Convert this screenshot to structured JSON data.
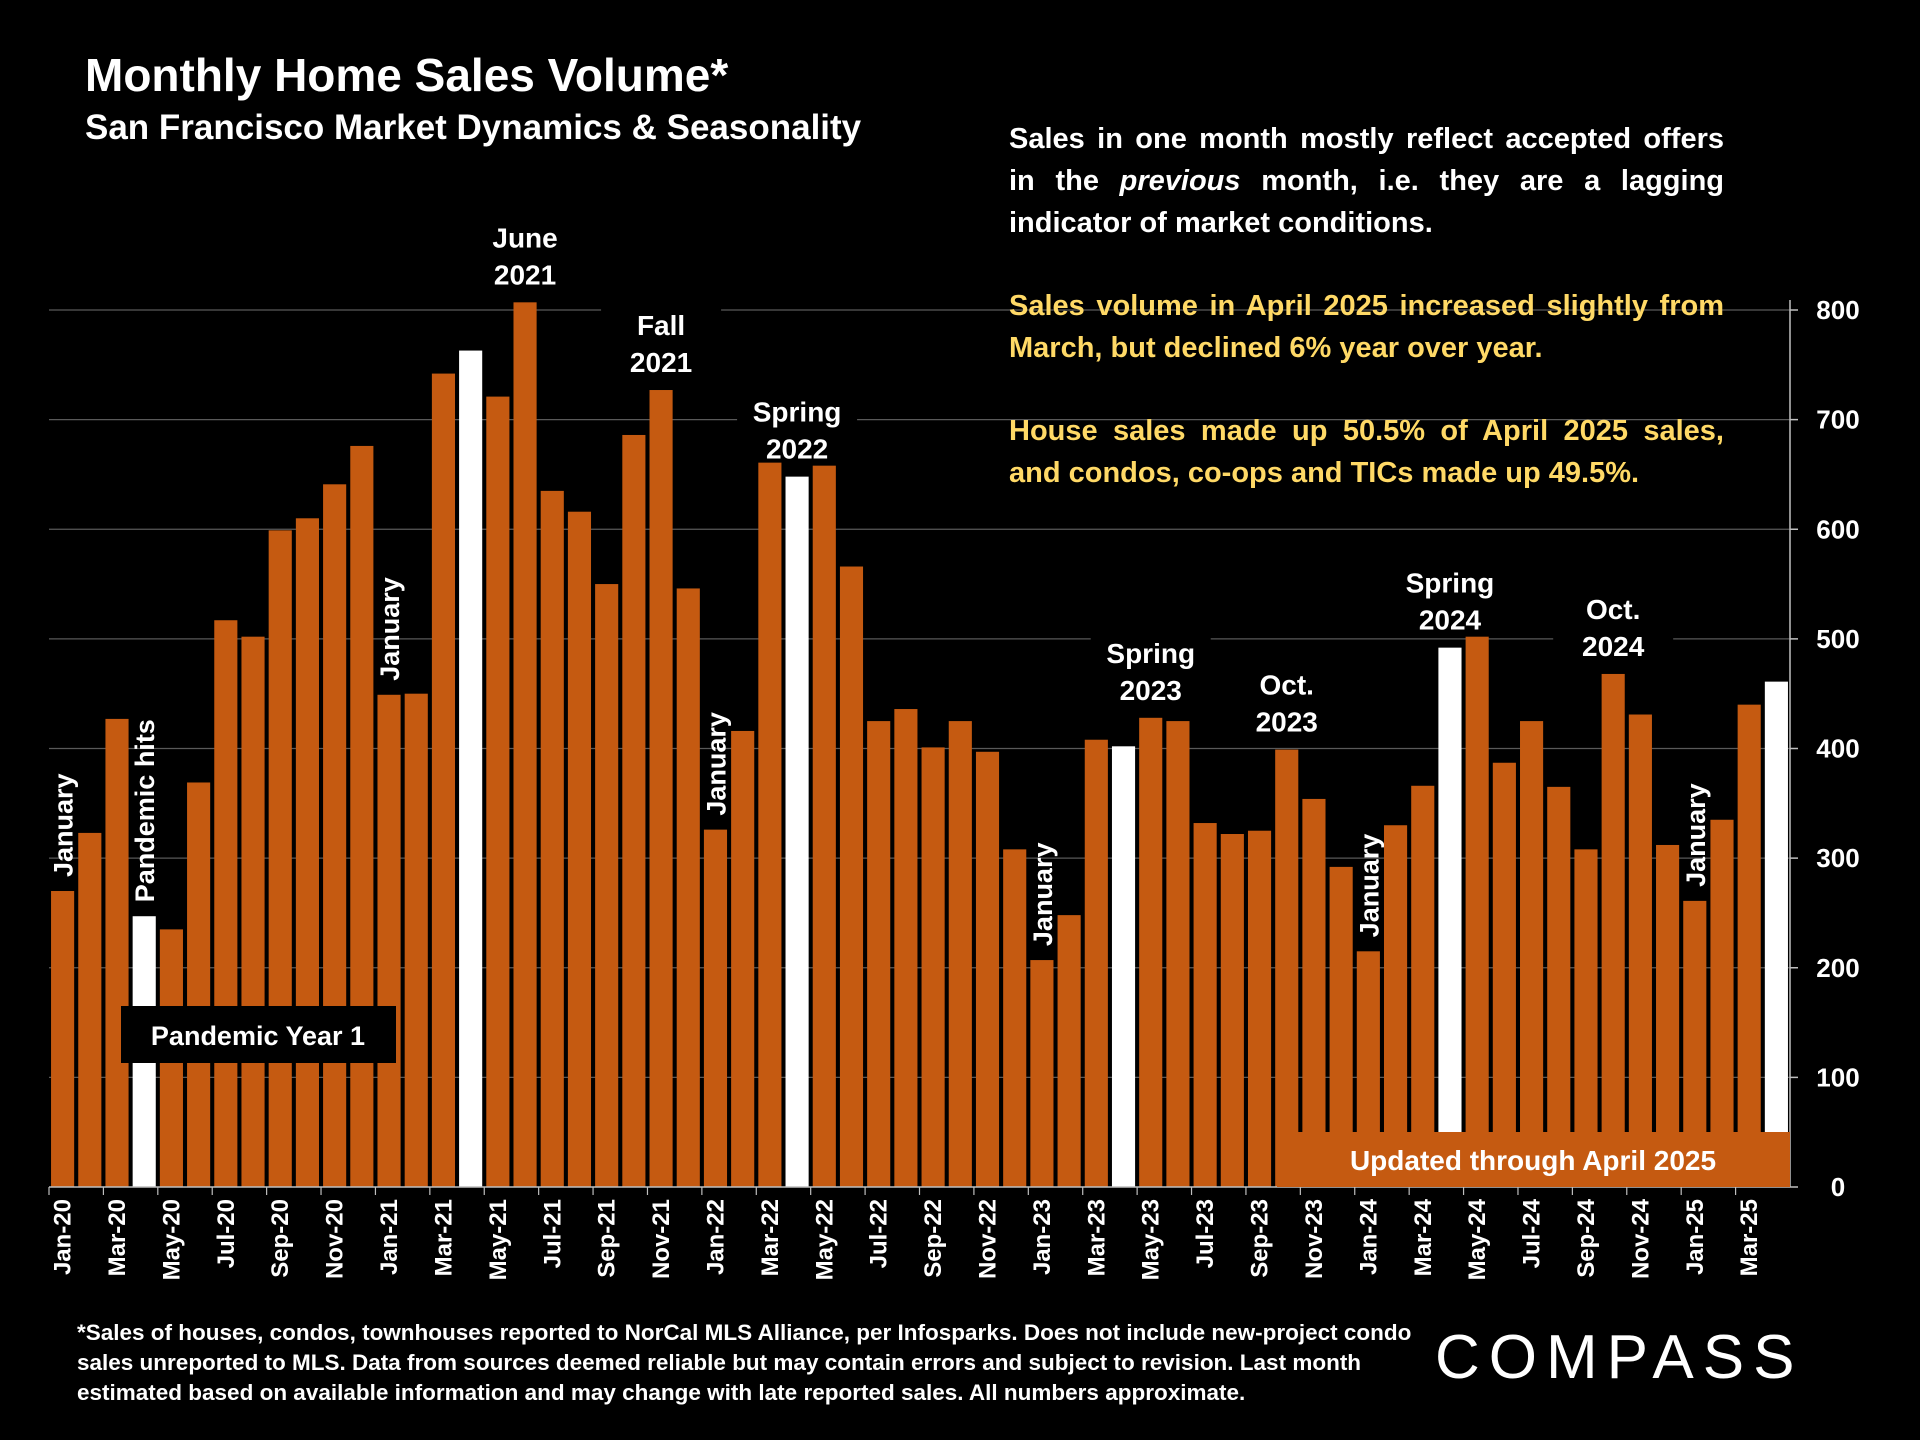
{
  "title": "Monthly Home Sales Volume*",
  "subtitle": "San Francisco Market Dynamics & Seasonality",
  "notes": {
    "p1_a": "Sales in one month mostly reflect accepted offers in the ",
    "p1_em": "previous",
    "p1_b": " month, i.e. they are a lagging indicator of market conditions.",
    "p2": "Sales volume in April 2025 increased slightly from March, but declined 6% year over year.",
    "p3": "House sales made up 50.5% of April 2025 sales, and condos, co-ops and TICs made up 49.5%."
  },
  "footer": "*Sales of houses, condos, townhouses reported to NorCal MLS Alliance, per Infosparks. Does not include new-project condo sales unreported to MLS. Data from sources deemed reliable but may contain errors and subject to revision. Last month estimated based on available information and may change with late reported sales. All numbers approximate.",
  "logo": "COMPASS",
  "colors": {
    "bar": "#c55a11",
    "highlight": "#ffffff",
    "grid": "#595959",
    "notes_highlight": "#ffd966"
  },
  "chart_data": {
    "type": "bar",
    "categories": [
      "Jan-20",
      "Feb-20",
      "Mar-20",
      "Apr-20",
      "May-20",
      "Jun-20",
      "Jul-20",
      "Aug-20",
      "Sep-20",
      "Oct-20",
      "Nov-20",
      "Dec-20",
      "Jan-21",
      "Feb-21",
      "Mar-21",
      "Apr-21",
      "May-21",
      "Jun-21",
      "Jul-21",
      "Aug-21",
      "Sep-21",
      "Oct-21",
      "Nov-21",
      "Dec-21",
      "Jan-22",
      "Feb-22",
      "Mar-22",
      "Apr-22",
      "May-22",
      "Jun-22",
      "Jul-22",
      "Aug-22",
      "Sep-22",
      "Oct-22",
      "Nov-22",
      "Dec-22",
      "Jan-23",
      "Feb-23",
      "Mar-23",
      "Apr-23",
      "May-23",
      "Jun-23",
      "Jul-23",
      "Aug-23",
      "Sep-23",
      "Oct-23",
      "Nov-23",
      "Dec-23",
      "Jan-24",
      "Feb-24",
      "Mar-24",
      "Apr-24",
      "May-24",
      "Jun-24",
      "Jul-24",
      "Aug-24",
      "Sep-24",
      "Oct-24",
      "Nov-24",
      "Dec-24",
      "Jan-25",
      "Feb-25",
      "Mar-25",
      "Apr-25"
    ],
    "values": [
      270,
      323,
      427,
      247,
      235,
      369,
      517,
      502,
      599,
      610,
      641,
      676,
      449,
      450,
      742,
      763,
      721,
      807,
      635,
      616,
      550,
      686,
      727,
      546,
      326,
      416,
      661,
      648,
      658,
      566,
      425,
      436,
      401,
      425,
      397,
      308,
      207,
      248,
      408,
      402,
      428,
      425,
      332,
      322,
      325,
      399,
      354,
      292,
      215,
      330,
      366,
      492,
      502,
      387,
      425,
      365,
      308,
      468,
      431,
      312,
      261,
      335,
      440,
      461
    ],
    "highlighted": [
      "Apr-20",
      "Apr-21",
      "Apr-22",
      "Apr-23",
      "Apr-24",
      "Apr-25"
    ],
    "x_tick_labels": [
      "Jan-20",
      "Mar-20",
      "May-20",
      "Jul-20",
      "Sep-20",
      "Nov-20",
      "Jan-21",
      "Mar-21",
      "May-21",
      "Jul-21",
      "Sep-21",
      "Nov-21",
      "Jan-22",
      "Mar-22",
      "May-22",
      "Jul-22",
      "Sep-22",
      "Nov-22",
      "Jan-23",
      "Mar-23",
      "May-23",
      "Jul-23",
      "Sep-23",
      "Nov-23",
      "Jan-24",
      "Mar-24",
      "May-24",
      "Jul-24",
      "Sep-24",
      "Nov-24",
      "Jan-25",
      "Mar-25"
    ],
    "y_ticks": [
      0,
      100,
      200,
      300,
      400,
      500,
      600,
      700,
      800
    ],
    "ylim": [
      0,
      800
    ],
    "y_axis_side": "right",
    "grid": true,
    "annotations": [
      {
        "month": "Jan-20",
        "lines": [
          "January"
        ],
        "rotated": true
      },
      {
        "month": "Apr-20",
        "lines": [
          "Pandemic hits"
        ],
        "rotated": true
      },
      {
        "month": "Jan-21",
        "lines": [
          "January"
        ],
        "rotated": true
      },
      {
        "month": "Jun-21",
        "lines": [
          "June",
          "2021"
        ],
        "rotated": false
      },
      {
        "month": "Nov-21",
        "lines": [
          "Fall",
          "2021"
        ],
        "rotated": false
      },
      {
        "month": "Jan-22",
        "lines": [
          "January"
        ],
        "rotated": true
      },
      {
        "month": "Apr-22",
        "lines": [
          "Spring",
          "2022"
        ],
        "rotated": false
      },
      {
        "month": "Jan-23",
        "lines": [
          "January"
        ],
        "rotated": true
      },
      {
        "month": "May-23",
        "lines": [
          "Spring",
          "2023"
        ],
        "rotated": false
      },
      {
        "month": "Oct-23",
        "lines": [
          "Oct.",
          "2023"
        ],
        "rotated": false
      },
      {
        "month": "Jan-24",
        "lines": [
          "January"
        ],
        "rotated": true
      },
      {
        "month": "Apr-24",
        "lines": [
          "Spring",
          "2024"
        ],
        "rotated": false
      },
      {
        "month": "Oct-24",
        "lines": [
          "Oct.",
          "2024"
        ],
        "rotated": false
      },
      {
        "month": "Jan-25",
        "lines": [
          "January"
        ],
        "rotated": true
      }
    ],
    "boxes": {
      "pandemic_year": "Pandemic Year 1",
      "updated": "Updated through April 2025"
    }
  }
}
